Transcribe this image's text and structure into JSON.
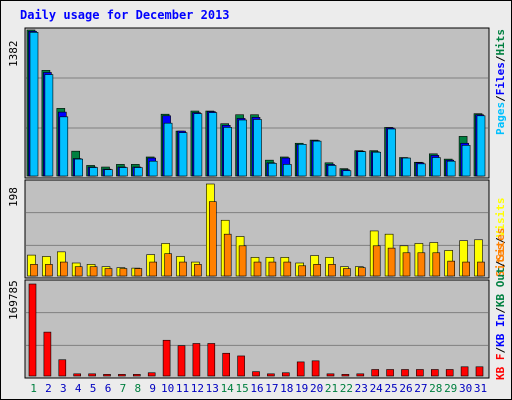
{
  "title": "Daily usage for December 2013",
  "colors": {
    "hits": "#008040",
    "files": "#0000ff",
    "pages": "#00c0ff",
    "visits": "#ffff00",
    "sites": "#ff8000",
    "kbin": "#0000ff",
    "kbout": "#008040",
    "kbf": "#ff0000",
    "separator": "#000000",
    "weekend": "#008040",
    "weekday": "#0000c0"
  },
  "chart_data": [
    {
      "type": "bar",
      "panel": "hits-files-pages",
      "ymax_label": "1382",
      "legend": [
        "Pages",
        "/",
        "Files",
        "/",
        "Hits"
      ],
      "categories": [
        "1",
        "2",
        "3",
        "4",
        "5",
        "6",
        "7",
        "8",
        "9",
        "10",
        "11",
        "12",
        "13",
        "14",
        "15",
        "16",
        "17",
        "18",
        "19",
        "20",
        "21",
        "22",
        "23",
        "24",
        "25",
        "26",
        "27",
        "28",
        "29",
        "30",
        "31"
      ],
      "weekend_days": [
        "1",
        "7",
        "8",
        "14",
        "15",
        "21",
        "22",
        "28",
        "29"
      ],
      "series": [
        {
          "name": "Hits",
          "values": [
            1382,
            1000,
            640,
            235,
            100,
            85,
            110,
            110,
            180,
            585,
            425,
            615,
            615,
            495,
            580,
            580,
            150,
            180,
            310,
            340,
            125,
            70,
            240,
            240,
            460,
            175,
            130,
            210,
            160,
            375,
            590
          ]
        },
        {
          "name": "Files",
          "values": [
            1370,
            980,
            605,
            165,
            85,
            65,
            85,
            85,
            170,
            570,
            425,
            600,
            610,
            480,
            545,
            555,
            125,
            170,
            300,
            335,
            110,
            60,
            235,
            230,
            455,
            170,
            125,
            195,
            150,
            310,
            580
          ]
        },
        {
          "name": "Pages",
          "values": [
            1360,
            960,
            560,
            160,
            80,
            60,
            80,
            80,
            140,
            500,
            410,
            590,
            600,
            460,
            530,
            535,
            120,
            110,
            300,
            330,
            100,
            50,
            230,
            225,
            445,
            170,
            115,
            175,
            140,
            290,
            570
          ]
        }
      ]
    },
    {
      "type": "bar",
      "panel": "visits-sites",
      "ymax_label": "198",
      "legend": [
        "Visits",
        "/",
        "Sites"
      ],
      "categories": [
        "1",
        "2",
        "3",
        "4",
        "5",
        "6",
        "7",
        "8",
        "9",
        "10",
        "11",
        "12",
        "13",
        "14",
        "15",
        "16",
        "17",
        "18",
        "19",
        "20",
        "21",
        "22",
        "23",
        "24",
        "25",
        "26",
        "27",
        "28",
        "29",
        "30",
        "31"
      ],
      "series": [
        {
          "name": "Visits",
          "values": [
            45,
            42,
            52,
            28,
            25,
            20,
            18,
            17,
            46,
            70,
            42,
            30,
            198,
            120,
            85,
            40,
            40,
            40,
            28,
            44,
            40,
            20,
            20,
            97,
            90,
            65,
            70,
            72,
            55,
            76,
            78
          ]
        },
        {
          "name": "Sites",
          "values": [
            25,
            25,
            30,
            20,
            20,
            16,
            16,
            16,
            30,
            48,
            30,
            25,
            160,
            90,
            65,
            30,
            30,
            30,
            22,
            25,
            25,
            16,
            18,
            65,
            60,
            50,
            50,
            50,
            32,
            30,
            30
          ]
        }
      ]
    },
    {
      "type": "bar",
      "panel": "kbytes",
      "ymax_label": "169785",
      "legend": [
        "KB F",
        "/",
        "KB In",
        "/",
        "KB Out",
        "/",
        "Sites"
      ],
      "categories": [
        "1",
        "2",
        "3",
        "4",
        "5",
        "6",
        "7",
        "8",
        "9",
        "10",
        "11",
        "12",
        "13",
        "14",
        "15",
        "16",
        "17",
        "18",
        "19",
        "20",
        "21",
        "22",
        "23",
        "24",
        "25",
        "26",
        "27",
        "28",
        "29",
        "30",
        "31"
      ],
      "series": [
        {
          "name": "KB F",
          "values": [
            169785,
            81000,
            30000,
            4000,
            4000,
            3000,
            3000,
            3000,
            6000,
            66000,
            56000,
            60000,
            60000,
            42000,
            37000,
            8000,
            4000,
            6000,
            26000,
            28000,
            4000,
            3000,
            4000,
            12000,
            12000,
            12000,
            12000,
            12000,
            12000,
            17000,
            17000
          ]
        }
      ]
    }
  ]
}
